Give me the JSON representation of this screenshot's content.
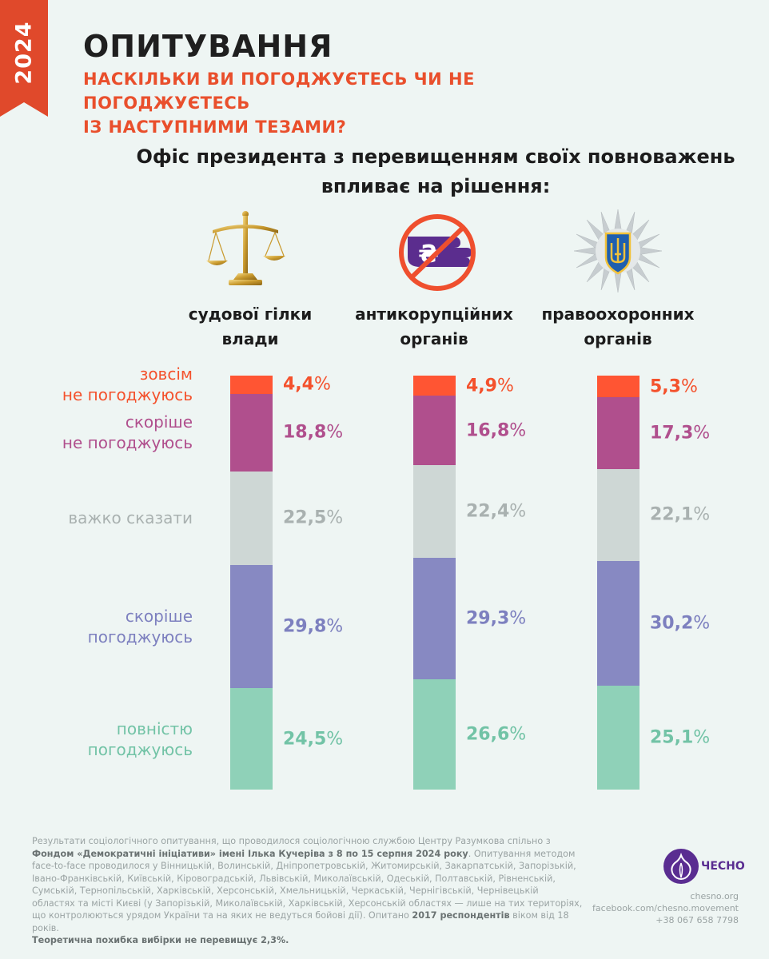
{
  "badge_year": "2024",
  "header": {
    "title": "ОПИТУВАННЯ",
    "subtitle_line1": "НАСКІЛЬКИ ВИ ПОГОДЖУЄТЕСЬ ЧИ НЕ ПОГОДЖУЄТЕСЬ",
    "subtitle_line2": "ІЗ НАСТУПНИМИ ТЕЗАМИ?"
  },
  "question": {
    "line1": "Офіс президента з перевищенням своїх повноважень",
    "line2": "впливає на рішення:"
  },
  "chart_data": {
    "type": "bar",
    "stacked": true,
    "unit": "%",
    "categories": [
      {
        "line1": "судової гілки",
        "line2": "влади",
        "icon": "scales-icon"
      },
      {
        "line1": "антикорупційних",
        "line2": "органів",
        "icon": "no-bribe-icon"
      },
      {
        "line1": "правоохоронних",
        "line2": "органів",
        "icon": "police-star-icon"
      }
    ],
    "series": [
      {
        "key": "disagree_full",
        "line1": "зовсім",
        "line2": "не погоджуюсь",
        "color": "#ff5533",
        "text_color": "#f4512c",
        "values": [
          4.4,
          4.9,
          5.3
        ],
        "labels": [
          "4,4",
          "4,9",
          "5,3"
        ]
      },
      {
        "key": "disagree_rather",
        "line1": "скоріше",
        "line2": "не погоджуюсь",
        "color": "#b04f8d",
        "text_color": "#b04f8d",
        "values": [
          18.8,
          16.8,
          17.3
        ],
        "labels": [
          "18,8",
          "16,8",
          "17,3"
        ]
      },
      {
        "key": "hard_to_say",
        "line1": "важко сказати",
        "line2": "",
        "color": "#ced7d5",
        "text_color": "#a9b1b0",
        "values": [
          22.5,
          22.4,
          22.1
        ],
        "labels": [
          "22,5",
          "22,4",
          "22,1"
        ]
      },
      {
        "key": "agree_rather",
        "line1": "скоріше",
        "line2": "погоджуюсь",
        "color": "#8789c2",
        "text_color": "#7d80bf",
        "values": [
          29.8,
          29.3,
          30.2
        ],
        "labels": [
          "29,8",
          "29,3",
          "30,2"
        ]
      },
      {
        "key": "agree_full",
        "line1": "повністю",
        "line2": "погоджуюсь",
        "color": "#8fd1b8",
        "text_color": "#72c3a6",
        "values": [
          24.5,
          26.6,
          25.1
        ],
        "labels": [
          "24,5",
          "26,6",
          "25,1"
        ]
      }
    ],
    "pct_sign": "%"
  },
  "footer": {
    "t1": "Результати соціологічного опитування, що проводилося соціологічною службою Центру Разумкова спільно з ",
    "b1": "Фондом «Демократичні ініціативи» імені Ілька Кучеріва з 8 по 15 серпня 2024 року",
    "t2": ". Опитування методом face-to-face проводилося у Вінницькій, Волинській, Дніпропетровській, Житомирській, Закарпатській, Запорізькій, Івано-Франківській, Київській, Кіровоградській, Львівській, Миколаївській, Одеській, Полтавській, Рівненській, Сумській, Тернопільській, Харківській, Херсонській, Хмельницькій, Черкаській, Чернігівській, Чернівецькій областях та місті Києві (у Запорізькій, Миколаївській, Харківській, Херсонській областях — лише на тих територіях, що контролюються урядом України та на яких не ведуться бойові дії). Опитано ",
    "b2": "2017 респондентів",
    "t3": " віком від 18 років.",
    "b3": "Теоретична похибка вибірки не перевищує 2,3%."
  },
  "brand": {
    "name": "ЧЕСНО",
    "site": "chesno.org",
    "facebook": "facebook.com/chesno.movement",
    "phone": "+38 067 658 7798"
  }
}
